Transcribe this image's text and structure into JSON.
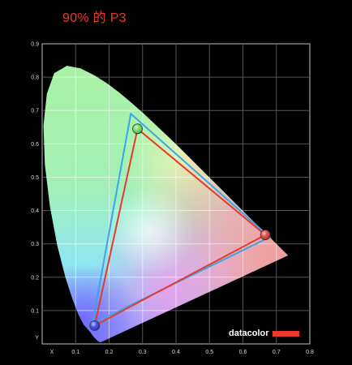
{
  "page": {
    "title": "90% 的 P3"
  },
  "brand": {
    "name": "datacolor",
    "bar_color": "#e8392c"
  },
  "chart_data": {
    "type": "scatter",
    "title": "90% 的 P3",
    "xlabel": "X",
    "ylabel": "Y",
    "xlim": [
      0,
      0.8
    ],
    "ylim": [
      0,
      0.9
    ],
    "x_ticks": [
      "X",
      "0.1",
      "0.2",
      "0.3",
      "0.4",
      "0.5",
      "0.6",
      "0.7",
      "0.8"
    ],
    "y_ticks": [
      "Y",
      "0.1",
      "0.2",
      "0.3",
      "0.4",
      "0.5",
      "0.6",
      "0.7",
      "0.8",
      "0.9"
    ],
    "grid": true,
    "spectral_locus": [
      [
        0.175,
        0.005
      ],
      [
        0.172,
        0.005
      ],
      [
        0.166,
        0.009
      ],
      [
        0.155,
        0.02
      ],
      [
        0.141,
        0.039
      ],
      [
        0.124,
        0.058
      ],
      [
        0.109,
        0.087
      ],
      [
        0.091,
        0.133
      ],
      [
        0.069,
        0.201
      ],
      [
        0.045,
        0.295
      ],
      [
        0.023,
        0.413
      ],
      [
        0.008,
        0.538
      ],
      [
        0.004,
        0.655
      ],
      [
        0.014,
        0.75
      ],
      [
        0.036,
        0.812
      ],
      [
        0.074,
        0.834
      ],
      [
        0.115,
        0.826
      ],
      [
        0.155,
        0.806
      ],
      [
        0.193,
        0.782
      ],
      [
        0.23,
        0.754
      ],
      [
        0.266,
        0.724
      ],
      [
        0.302,
        0.692
      ],
      [
        0.337,
        0.659
      ],
      [
        0.373,
        0.625
      ],
      [
        0.409,
        0.59
      ],
      [
        0.444,
        0.555
      ],
      [
        0.479,
        0.52
      ],
      [
        0.512,
        0.487
      ],
      [
        0.544,
        0.455
      ],
      [
        0.575,
        0.424
      ],
      [
        0.603,
        0.396
      ],
      [
        0.627,
        0.372
      ],
      [
        0.648,
        0.351
      ],
      [
        0.666,
        0.334
      ],
      [
        0.68,
        0.32
      ],
      [
        0.691,
        0.309
      ],
      [
        0.7,
        0.3
      ],
      [
        0.707,
        0.293
      ],
      [
        0.712,
        0.288
      ],
      [
        0.715,
        0.285
      ],
      [
        0.718,
        0.282
      ],
      [
        0.722,
        0.278
      ],
      [
        0.7347,
        0.2653
      ]
    ],
    "series": [
      {
        "color": "#3aa6e8",
        "points": [
          [
            0.265,
            0.69
          ],
          [
            0.68,
            0.32
          ],
          [
            0.15,
            0.06
          ]
        ]
      },
      {
        "color": "#e8392c",
        "points": [
          [
            0.285,
            0.645
          ],
          [
            0.667,
            0.327
          ],
          [
            0.157,
            0.055
          ]
        ]
      }
    ],
    "primaries": [
      {
        "x": 0.285,
        "y": 0.645,
        "color": "#5fcf4f"
      },
      {
        "x": 0.667,
        "y": 0.327,
        "color": "#d9302a"
      },
      {
        "x": 0.157,
        "y": 0.055,
        "color": "#2236e0"
      }
    ]
  }
}
